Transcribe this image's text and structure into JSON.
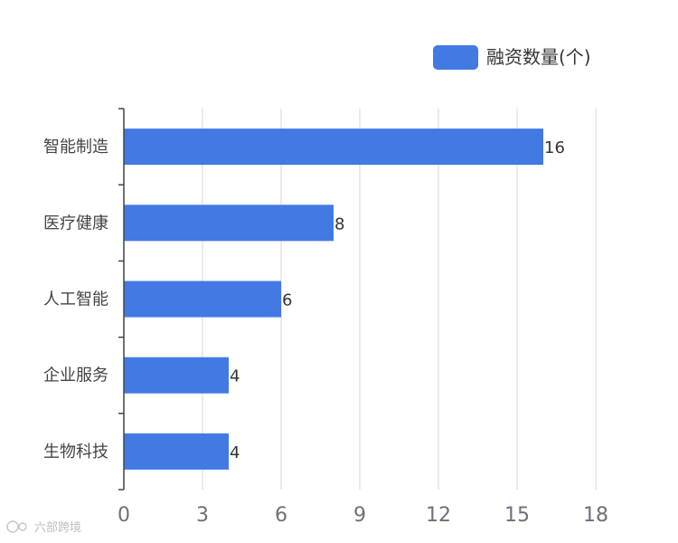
{
  "chart_data": {
    "type": "bar",
    "orientation": "horizontal",
    "categories": [
      "智能制造",
      "医疗健康",
      "人工智能",
      "企业服务",
      "生物科技"
    ],
    "series": [
      {
        "name": "融资数量(个)",
        "values": [
          16,
          8,
          6,
          4,
          4
        ],
        "color": "#4279e3"
      }
    ],
    "xlim": [
      0,
      18
    ],
    "xticks": [
      0,
      3,
      6,
      9,
      12,
      15,
      18
    ],
    "grid": true,
    "legend_position": "top-right",
    "data_labels": true
  },
  "watermark": {
    "text": "六部跨境"
  }
}
